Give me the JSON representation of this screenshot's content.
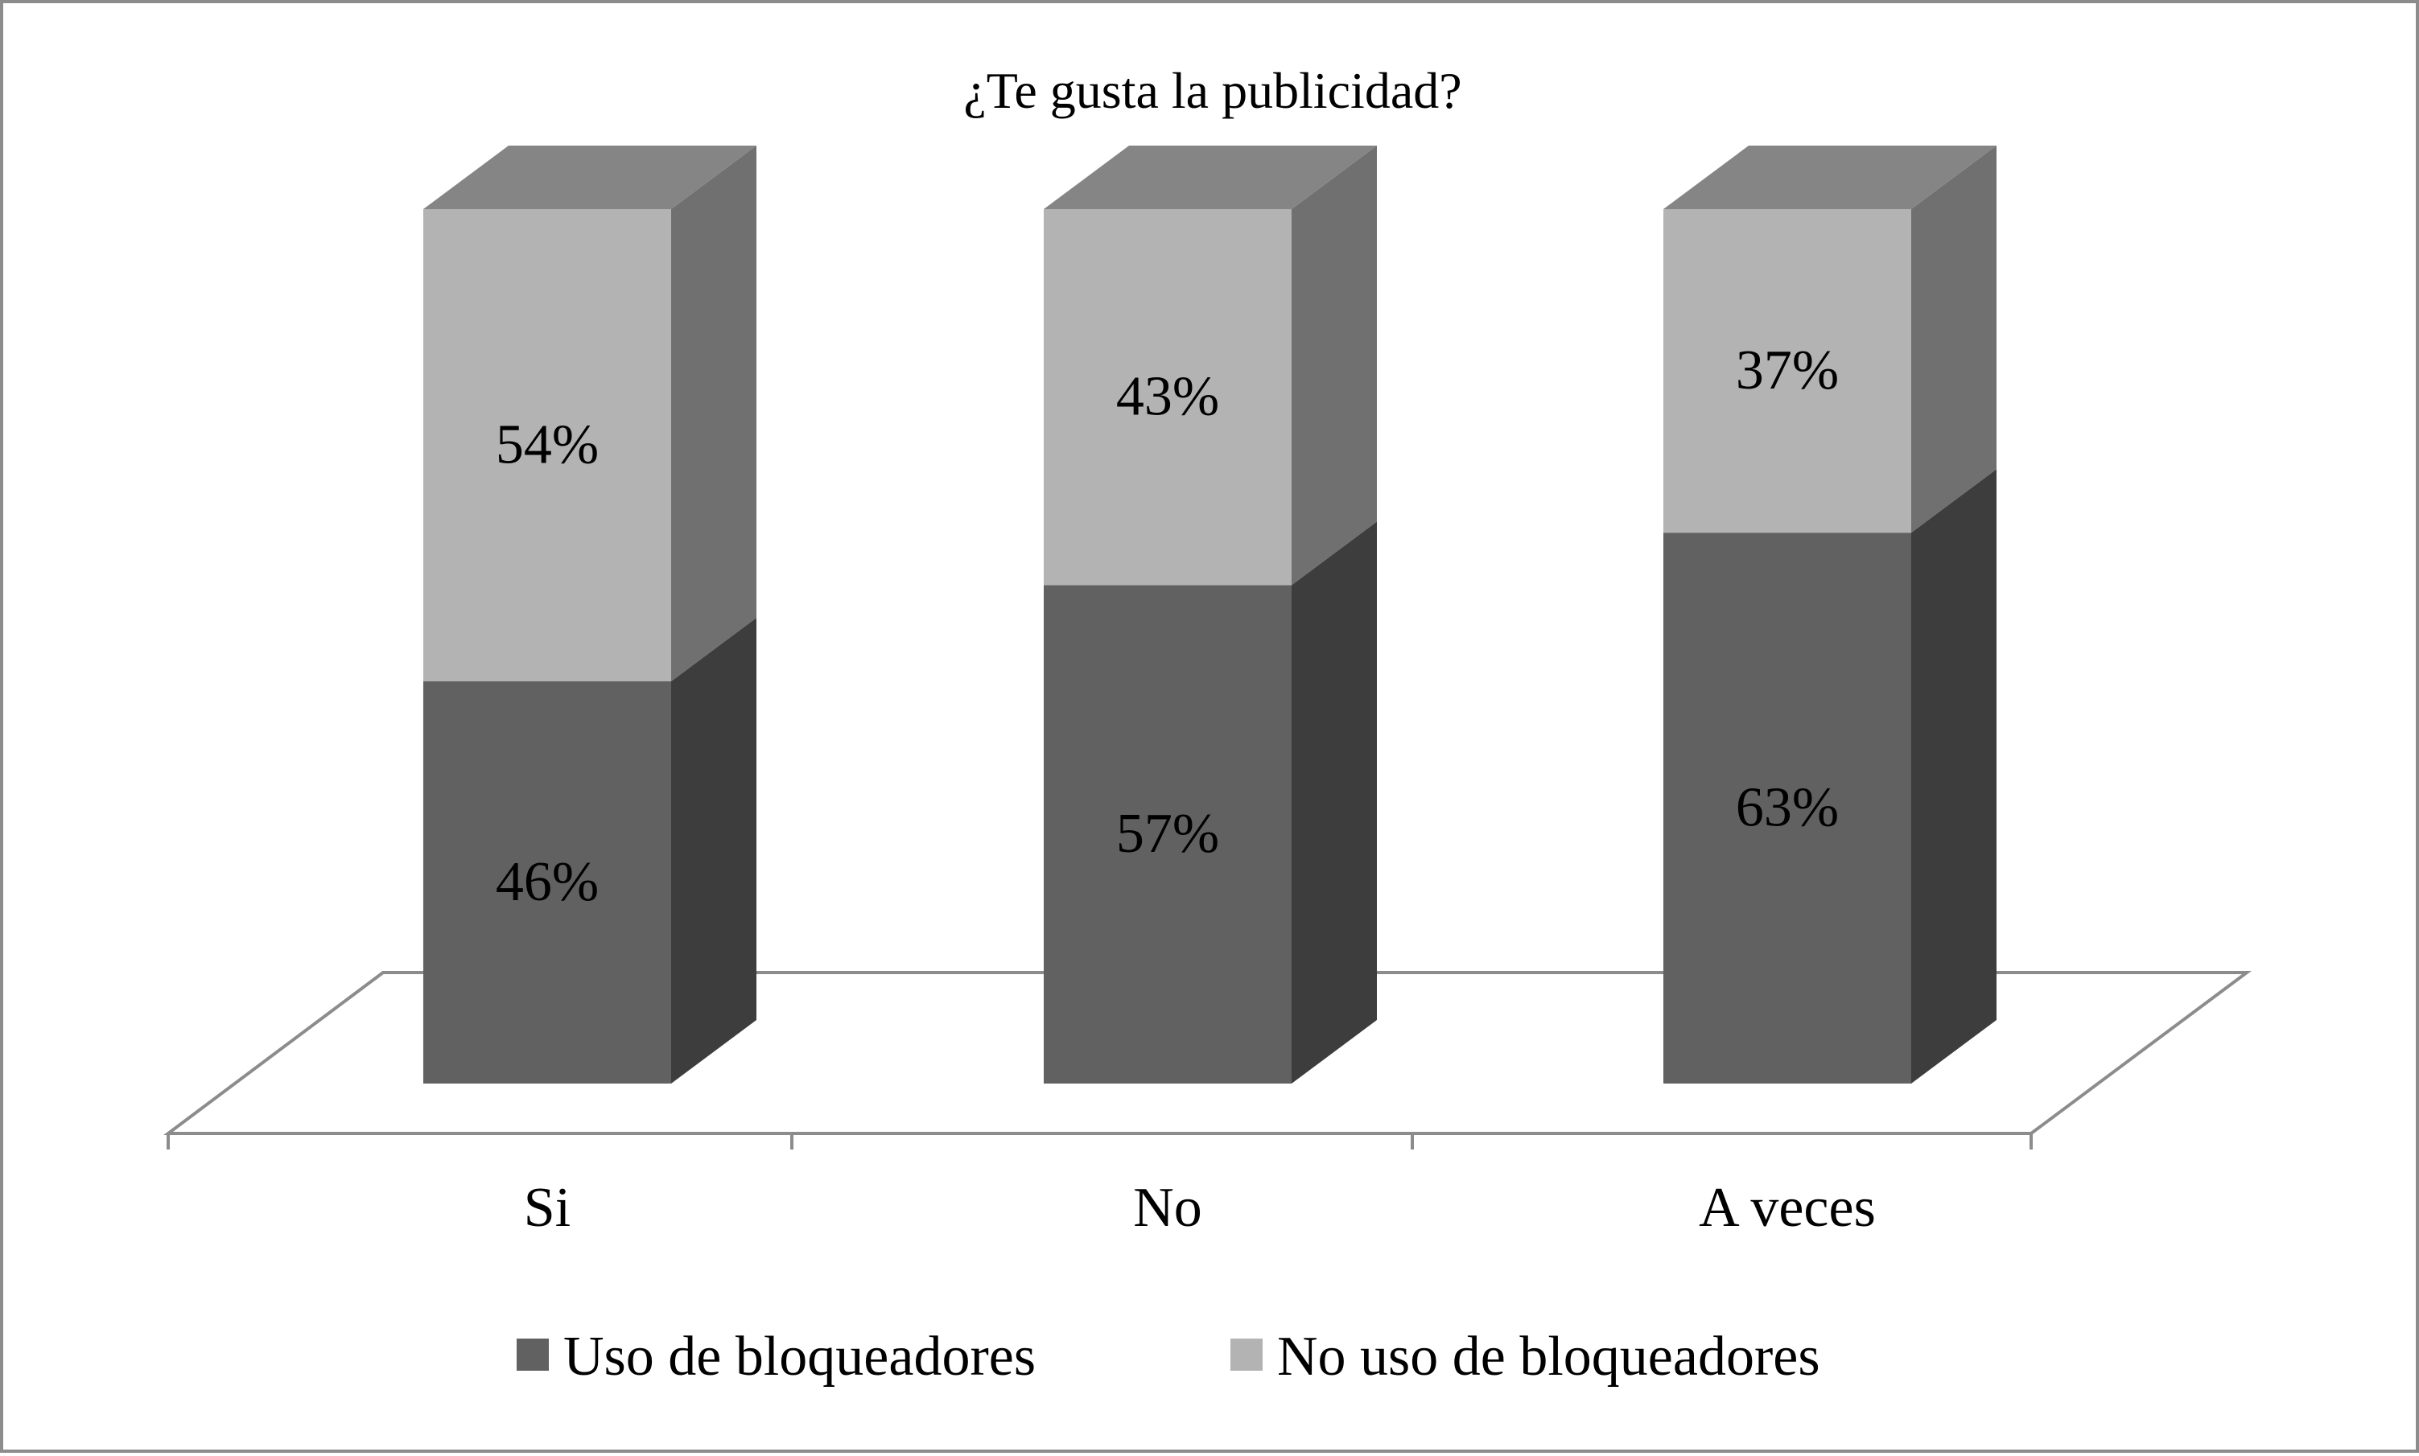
{
  "chart_data": {
    "type": "bar",
    "stacked": true,
    "normalized": true,
    "three_d": true,
    "title": "¿Te gusta la publicidad?",
    "categories": [
      "Si",
      "No",
      "A veces"
    ],
    "series": [
      {
        "name": "Uso de bloqueadores",
        "values": [
          46,
          57,
          63
        ],
        "labels": [
          "46%",
          "57%",
          "63%"
        ],
        "color": "#616161",
        "side_color": "#3d3d3d"
      },
      {
        "name": "No uso de bloqueadores",
        "values": [
          54,
          43,
          37
        ],
        "labels": [
          "54%",
          "43%",
          "37%"
        ],
        "color": "#b3b3b3",
        "side_color": "#707070"
      }
    ],
    "top_color": "#858585",
    "ylim": [
      0,
      100
    ],
    "legend_position": "bottom",
    "grid": false
  }
}
